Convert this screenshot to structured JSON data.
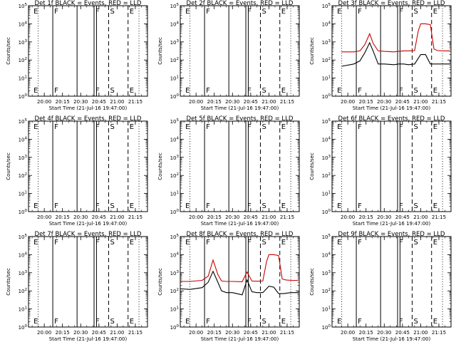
{
  "colors": {
    "events": "#000000",
    "lld": "#cc0000",
    "axis": "#000000",
    "background": "#ffffff"
  },
  "chart_data": {
    "type": "line",
    "grid": false,
    "layout": "3x3",
    "ylabel": "Counts/sec",
    "xlabel": "Start Time (21-Jul-16 19:47:00)",
    "y_scale": "log",
    "ylim": [
      1,
      100000
    ],
    "y_tick_labels": [
      "10^0",
      "10^1",
      "10^2",
      "10^3",
      "10^4",
      "10^5"
    ],
    "xlim": [
      "19:47",
      "21:25"
    ],
    "x_tick_labels": [
      "20:00",
      "20:15",
      "20:30",
      "20:45",
      "21:00",
      "21:15"
    ],
    "markers": [
      {
        "label": "E",
        "time": "19:50",
        "style": "none"
      },
      {
        "label": "F",
        "time": "20:07",
        "style": "solid"
      },
      {
        "label": "F",
        "time": "20:41",
        "style": "solid"
      },
      {
        "label": "S",
        "time": "20:53",
        "style": "dashed"
      },
      {
        "label": "E",
        "time": "21:09",
        "style": "dashed"
      }
    ],
    "dotted_lines": [
      "19:55",
      "21:18"
    ],
    "extra_solid_lines": [
      "20:27",
      "20:43"
    ],
    "panels": [
      {
        "title": "Det 1f BLACK = Events, RED = LLD",
        "series": []
      },
      {
        "title": "Det 2f BLACK = Events, RED = LLD",
        "series": []
      },
      {
        "title": "Det 3f BLACK = Events, RED = LLD",
        "series": [
          {
            "name": "Events",
            "color": "#000000",
            "x": [
              "19:55",
              "20:05",
              "20:10",
              "20:14",
              "20:18",
              "20:21",
              "20:25",
              "20:30",
              "20:38",
              "20:42",
              "20:46",
              "20:50",
              "20:55",
              "21:00",
              "21:04",
              "21:08",
              "21:12",
              "21:18",
              "21:24"
            ],
            "y": [
              45,
              60,
              90,
              250,
              900,
              300,
              60,
              60,
              55,
              60,
              60,
              55,
              60,
              200,
              200,
              60,
              60,
              60,
              60
            ]
          },
          {
            "name": "LLD",
            "color": "#cc0000",
            "x": [
              "19:55",
              "20:05",
              "20:10",
              "20:14",
              "20:18",
              "20:21",
              "20:25",
              "20:30",
              "20:38",
              "20:42",
              "20:46",
              "20:50",
              "20:55",
              "20:58",
              "21:00",
              "21:04",
              "21:08",
              "21:11",
              "21:14",
              "21:18",
              "21:24"
            ],
            "y": [
              280,
              280,
              320,
              700,
              2800,
              800,
              320,
              300,
              280,
              300,
              320,
              320,
              330,
              4000,
              10000,
              10000,
              9000,
              400,
              330,
              320,
              320
            ]
          }
        ]
      },
      {
        "title": "Det 4f BLACK = Events, RED = LLD",
        "series": []
      },
      {
        "title": "Det 5f BLACK = Events, RED = LLD",
        "series": []
      },
      {
        "title": "Det 6f BLACK = Events, RED = LLD",
        "series": []
      },
      {
        "title": "Det 7f BLACK = Events, RED = LLD",
        "series": []
      },
      {
        "title": "Det 8f BLACK = Events, RED = LLD",
        "series": [
          {
            "name": "Events",
            "color": "#000000",
            "x": [
              "19:47",
              "19:55",
              "20:05",
              "20:10",
              "20:14",
              "20:18",
              "20:21",
              "20:25",
              "20:30",
              "20:38",
              "20:42",
              "20:46",
              "20:50",
              "20:55",
              "21:00",
              "21:04",
              "21:08",
              "21:12",
              "21:18",
              "21:24"
            ],
            "y": [
              130,
              120,
              150,
              300,
              1200,
              300,
              100,
              80,
              80,
              60,
              400,
              90,
              80,
              80,
              180,
              160,
              70,
              70,
              80,
              80
            ]
          },
          {
            "name": "LLD",
            "color": "#cc0000",
            "x": [
              "19:47",
              "19:55",
              "20:05",
              "20:10",
              "20:14",
              "20:18",
              "20:21",
              "20:25",
              "20:30",
              "20:38",
              "20:42",
              "20:46",
              "20:50",
              "20:55",
              "20:58",
              "21:00",
              "21:04",
              "21:08",
              "21:11",
              "21:14",
              "21:18",
              "21:24"
            ],
            "y": [
              330,
              330,
              380,
              650,
              5000,
              800,
              350,
              330,
              330,
              320,
              1100,
              350,
              340,
              350,
              4000,
              10000,
              10000,
              9000,
              450,
              400,
              380,
              380
            ]
          }
        ]
      },
      {
        "title": "Det 9f BLACK = Events, RED = LLD",
        "series": []
      }
    ]
  }
}
